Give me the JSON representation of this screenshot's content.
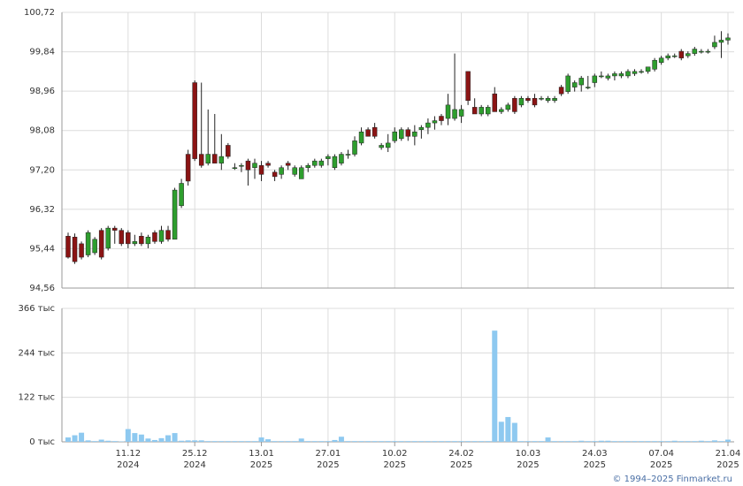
{
  "chart_data": {
    "type": "candlestick",
    "xticks": [
      {
        "value": 9,
        "label": "11.12",
        "year": "2024"
      },
      {
        "value": 19,
        "label": "25.12",
        "year": "2024"
      },
      {
        "value": 29,
        "label": "13.01",
        "year": "2025"
      },
      {
        "value": 39,
        "label": "27.01",
        "year": "2025"
      },
      {
        "value": 49,
        "label": "10.02",
        "year": "2025"
      },
      {
        "value": 59,
        "label": "24.02",
        "year": "2025"
      },
      {
        "value": 69,
        "label": "10.03",
        "year": "2025"
      },
      {
        "value": 79,
        "label": "24.03",
        "year": "2025"
      },
      {
        "value": 89,
        "label": "07.04",
        "year": "2025"
      },
      {
        "value": 99,
        "label": "21.04",
        "year": "2025"
      }
    ],
    "ylim": [
      94.56,
      100.72
    ],
    "yticks": [
      {
        "value": 100.72,
        "label": "100,72"
      },
      {
        "value": 99.84,
        "label": "99,84"
      },
      {
        "value": 98.96,
        "label": "98,96"
      },
      {
        "value": 98.08,
        "label": "98,08"
      },
      {
        "value": 97.2,
        "label": "97,20"
      },
      {
        "value": 96.32,
        "label": "96,32"
      },
      {
        "value": 95.44,
        "label": "95,44"
      },
      {
        "value": 94.56,
        "label": "94,56"
      }
    ],
    "up_color": "#2e9e2e",
    "down_color": "#8b1414",
    "open": [
      95.72,
      95.7,
      95.55,
      95.3,
      95.35,
      95.85,
      95.45,
      95.9,
      95.85,
      95.8,
      95.55,
      95.72,
      95.55,
      95.8,
      95.6,
      95.85,
      95.65,
      96.4,
      97.55,
      99.15,
      97.55,
      97.35,
      97.55,
      97.35,
      97.75,
      97.25,
      97.3,
      97.4,
      97.25,
      97.3,
      97.35,
      97.15,
      97.1,
      97.35,
      97.1,
      97.0,
      97.25,
      97.3,
      97.3,
      97.45,
      97.25,
      97.35,
      97.55,
      97.55,
      97.8,
      98.1,
      98.15,
      97.7,
      97.7,
      97.85,
      97.9,
      98.1,
      97.95,
      98.1,
      98.15,
      98.25,
      98.4,
      98.35,
      98.35,
      98.4,
      99.4,
      98.6,
      98.45,
      98.45,
      98.9,
      98.5,
      98.55,
      98.8,
      98.65,
      98.8,
      98.8,
      98.8,
      98.75,
      98.75,
      99.05,
      98.95,
      99.05,
      99.1,
      99.05,
      99.15,
      99.3,
      99.25,
      99.3,
      99.3,
      99.3,
      99.35,
      99.4,
      99.4,
      99.45,
      99.6,
      99.7,
      99.75,
      99.85,
      99.75,
      99.8,
      99.85,
      99.85,
      99.95,
      100.05,
      100.1
    ],
    "high": [
      95.8,
      95.78,
      95.6,
      95.85,
      95.7,
      95.9,
      95.95,
      95.95,
      95.9,
      95.85,
      95.75,
      95.8,
      95.75,
      95.85,
      95.95,
      95.95,
      96.8,
      97.0,
      97.65,
      99.2,
      99.15,
      98.55,
      98.45,
      98.0,
      97.8,
      97.35,
      97.35,
      97.45,
      97.45,
      97.4,
      97.4,
      97.2,
      97.3,
      97.4,
      97.3,
      97.3,
      97.35,
      97.45,
      97.45,
      97.55,
      97.55,
      97.6,
      97.65,
      97.95,
      98.15,
      98.15,
      98.25,
      97.8,
      98.0,
      98.15,
      98.15,
      98.15,
      98.2,
      98.2,
      98.35,
      98.4,
      98.45,
      98.9,
      99.8,
      98.65,
      99.4,
      98.8,
      98.65,
      98.65,
      99.05,
      98.6,
      98.7,
      98.85,
      98.85,
      98.85,
      98.9,
      98.85,
      98.85,
      98.85,
      99.1,
      99.35,
      99.2,
      99.3,
      99.3,
      99.35,
      99.4,
      99.35,
      99.4,
      99.4,
      99.45,
      99.45,
      99.45,
      99.5,
      99.7,
      99.75,
      99.8,
      99.8,
      99.9,
      99.85,
      99.95,
      99.9,
      99.9,
      100.2,
      100.3,
      100.25
    ],
    "low": [
      95.22,
      95.1,
      95.2,
      95.25,
      95.3,
      95.2,
      95.4,
      95.55,
      95.5,
      95.45,
      95.5,
      95.5,
      95.45,
      95.55,
      95.55,
      95.6,
      95.65,
      96.35,
      96.85,
      97.4,
      97.25,
      97.3,
      97.35,
      97.2,
      97.45,
      97.2,
      97.15,
      96.85,
      97.0,
      96.95,
      97.25,
      96.95,
      97.0,
      97.2,
      97.05,
      97.0,
      97.15,
      97.25,
      97.25,
      97.3,
      97.2,
      97.3,
      97.45,
      97.5,
      97.75,
      97.95,
      97.9,
      97.65,
      97.6,
      97.8,
      97.85,
      97.85,
      97.75,
      97.9,
      98.0,
      98.1,
      98.2,
      98.2,
      98.3,
      98.25,
      98.65,
      98.45,
      98.4,
      98.4,
      98.5,
      98.45,
      98.5,
      98.45,
      98.6,
      98.7,
      98.6,
      98.75,
      98.7,
      98.7,
      98.85,
      98.9,
      98.95,
      98.95,
      99.0,
      99.05,
      99.25,
      99.2,
      99.2,
      99.25,
      99.25,
      99.3,
      99.35,
      99.35,
      99.4,
      99.55,
      99.65,
      99.7,
      99.65,
      99.7,
      99.75,
      99.8,
      99.8,
      99.9,
      99.7,
      100.0
    ],
    "close": [
      95.25,
      95.15,
      95.25,
      95.8,
      95.65,
      95.25,
      95.9,
      95.85,
      95.55,
      95.55,
      95.6,
      95.55,
      95.7,
      95.6,
      95.85,
      95.65,
      96.75,
      96.9,
      96.95,
      97.45,
      97.3,
      97.55,
      97.35,
      97.5,
      97.5,
      97.25,
      97.3,
      97.2,
      97.35,
      97.1,
      97.3,
      97.05,
      97.25,
      97.3,
      97.25,
      97.25,
      97.3,
      97.4,
      97.4,
      97.5,
      97.5,
      97.55,
      97.55,
      97.85,
      98.05,
      97.95,
      97.95,
      97.75,
      97.8,
      98.05,
      98.1,
      97.95,
      98.05,
      98.15,
      98.25,
      98.3,
      98.3,
      98.65,
      98.55,
      98.55,
      98.75,
      98.45,
      98.6,
      98.6,
      98.5,
      98.55,
      98.65,
      98.5,
      98.8,
      98.75,
      98.65,
      98.8,
      98.8,
      98.8,
      98.9,
      99.3,
      99.15,
      99.25,
      99.05,
      99.3,
      99.3,
      99.3,
      99.35,
      99.35,
      99.4,
      99.4,
      99.4,
      99.5,
      99.65,
      99.7,
      99.75,
      99.75,
      99.7,
      99.8,
      99.9,
      99.85,
      99.85,
      100.05,
      100.1,
      100.15
    ],
    "volume_color": "#8ec9f0",
    "volume_ylim": [
      0,
      366
    ],
    "volume_yticks": [
      {
        "value": 366,
        "label": "366 тыс"
      },
      {
        "value": 244,
        "label": "244 тыс"
      },
      {
        "value": 122,
        "label": "122 тыс"
      },
      {
        "value": 0,
        "label": "0 тыс"
      }
    ],
    "volume": [
      12,
      18,
      25,
      4,
      2,
      6,
      3,
      2,
      1,
      35,
      24,
      20,
      9,
      5,
      10,
      18,
      24,
      3,
      4,
      4,
      4,
      2,
      2,
      2,
      2,
      2,
      2,
      2,
      2,
      12,
      7,
      2,
      2,
      2,
      2,
      9,
      2,
      2,
      2,
      2,
      5,
      14,
      2,
      2,
      2,
      2,
      2,
      2,
      2,
      2,
      2,
      2,
      2,
      2,
      2,
      2,
      2,
      2,
      2,
      2,
      2,
      2,
      2,
      2,
      305,
      55,
      68,
      52,
      2,
      2,
      2,
      2,
      12,
      2,
      2,
      2,
      2,
      3,
      2,
      2,
      3,
      3,
      2,
      2,
      2,
      2,
      2,
      2,
      2,
      2,
      2,
      3,
      2,
      2,
      2,
      3,
      2,
      4,
      2,
      6
    ],
    "grid": true,
    "copyright": "© 1994–2025 Finmarket.ru"
  }
}
